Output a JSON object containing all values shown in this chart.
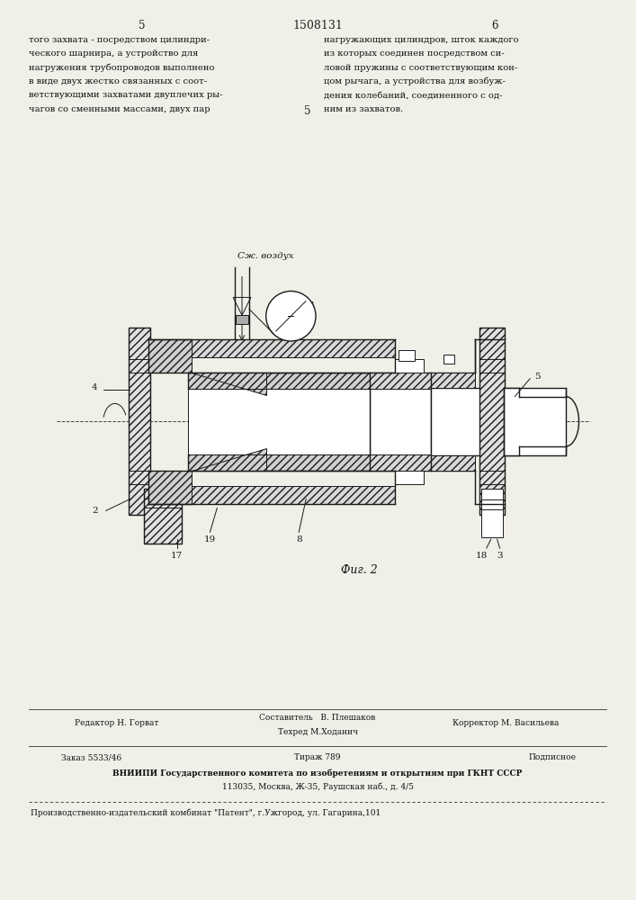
{
  "page_width": 7.07,
  "page_height": 10.0,
  "bg_color": "#f0efe8",
  "header": {
    "page_left": "5",
    "title_center": "1508131",
    "page_right": "6"
  },
  "text_left": [
    "того захвата - посредством цилиндри-",
    "ческого шарнира, а устройство для",
    "нагружения трубопроводов выполнено",
    "в виде двух жестко связанных с соот-",
    "ветствующими захватами двуплечих ры-",
    "чагов со сменными массами, двух пар"
  ],
  "text_right": [
    "нагружающих цилиндров, шток каждого",
    "из которых соединен посредством си-",
    "ловой пружины с соответствующим кон-",
    "цом рычага, а устройства для возбуж-",
    "дения колебаний, соединенного с од-",
    "ним из захватов."
  ],
  "middle_number": "5",
  "fig_caption": "Фиг. 2",
  "label_czh_vozduh": "Сж. воздух",
  "vnipi_line": "ВНИИПИ Государственного комитета по изобретениям и открытиям при ГКНТ СССР",
  "vnipi_addr": "113035, Москва, Ж-35, Раушская наб., д. 4/5",
  "patent_line": "Производственно-издательский комбинат \"Патент\", г.Ужгород, ул. Гагарина,101"
}
